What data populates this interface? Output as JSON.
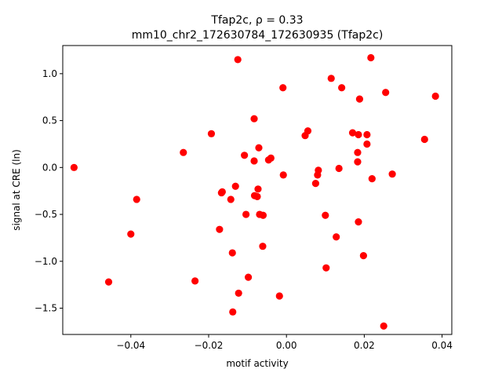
{
  "chart_data": {
    "type": "scatter",
    "title_line1": "Tfap2c, ρ = 0.33",
    "title_line2": "mm10_chr2_172630784_172630935 (Tfap2c)",
    "xlabel": "motif activity",
    "ylabel": "signal at CRE (ln)",
    "xlim": [
      -0.0575,
      0.0425
    ],
    "ylim": [
      -1.78,
      1.3
    ],
    "xticks": [
      -0.04,
      -0.02,
      0.0,
      0.02,
      0.04
    ],
    "xtick_labels": [
      "−0.04",
      "−0.02",
      "0.00",
      "0.02",
      "0.04"
    ],
    "yticks": [
      -1.5,
      -1.0,
      -0.5,
      0.0,
      0.5,
      1.0
    ],
    "ytick_labels": [
      "−1.5",
      "−1.0",
      "−0.5",
      "0.0",
      "0.5",
      "1.0"
    ],
    "grid": false,
    "marker_color": "#ff0000",
    "points": [
      {
        "x": -0.0546,
        "y": 0.0
      },
      {
        "x": -0.0457,
        "y": -1.22
      },
      {
        "x": -0.04,
        "y": -0.71
      },
      {
        "x": -0.0385,
        "y": -0.34
      },
      {
        "x": -0.0265,
        "y": 0.16
      },
      {
        "x": -0.0235,
        "y": -1.21
      },
      {
        "x": -0.0193,
        "y": 0.36
      },
      {
        "x": -0.0172,
        "y": -0.66
      },
      {
        "x": -0.0165,
        "y": -0.26
      },
      {
        "x": -0.0167,
        "y": -0.27
      },
      {
        "x": -0.0143,
        "y": -0.34
      },
      {
        "x": -0.0139,
        "y": -0.91
      },
      {
        "x": -0.0138,
        "y": -1.54
      },
      {
        "x": -0.0131,
        "y": -0.2
      },
      {
        "x": -0.0125,
        "y": 1.15
      },
      {
        "x": -0.0123,
        "y": -1.34
      },
      {
        "x": -0.0108,
        "y": 0.13
      },
      {
        "x": -0.0104,
        "y": -0.5
      },
      {
        "x": -0.0098,
        "y": -1.17
      },
      {
        "x": -0.0083,
        "y": 0.52
      },
      {
        "x": -0.0083,
        "y": 0.07
      },
      {
        "x": -0.0082,
        "y": -0.3
      },
      {
        "x": -0.0075,
        "y": -0.31
      },
      {
        "x": -0.0073,
        "y": -0.23
      },
      {
        "x": -0.0071,
        "y": 0.21
      },
      {
        "x": -0.0069,
        "y": -0.5
      },
      {
        "x": -0.0061,
        "y": -0.84
      },
      {
        "x": -0.006,
        "y": -0.51
      },
      {
        "x": -0.0046,
        "y": 0.08
      },
      {
        "x": -0.004,
        "y": 0.1
      },
      {
        "x": -0.0018,
        "y": -1.37
      },
      {
        "x": -0.0009,
        "y": 0.85
      },
      {
        "x": -0.0008,
        "y": -0.08
      },
      {
        "x": 0.0048,
        "y": 0.34
      },
      {
        "x": 0.0055,
        "y": 0.39
      },
      {
        "x": 0.0075,
        "y": -0.17
      },
      {
        "x": 0.008,
        "y": -0.08
      },
      {
        "x": 0.0082,
        "y": -0.03
      },
      {
        "x": 0.01,
        "y": -0.51
      },
      {
        "x": 0.0102,
        "y": -1.07
      },
      {
        "x": 0.0115,
        "y": 0.95
      },
      {
        "x": 0.0128,
        "y": -0.74
      },
      {
        "x": 0.0135,
        "y": -0.01
      },
      {
        "x": 0.0142,
        "y": 0.85
      },
      {
        "x": 0.017,
        "y": 0.37
      },
      {
        "x": 0.0183,
        "y": 0.16
      },
      {
        "x": 0.0183,
        "y": 0.06
      },
      {
        "x": 0.0185,
        "y": 0.35
      },
      {
        "x": 0.0185,
        "y": -0.58
      },
      {
        "x": 0.0188,
        "y": 0.73
      },
      {
        "x": 0.0198,
        "y": -0.94
      },
      {
        "x": 0.0207,
        "y": 0.35
      },
      {
        "x": 0.0207,
        "y": 0.25
      },
      {
        "x": 0.0217,
        "y": 1.17
      },
      {
        "x": 0.022,
        "y": -0.12
      },
      {
        "x": 0.025,
        "y": -1.69
      },
      {
        "x": 0.0255,
        "y": 0.8
      },
      {
        "x": 0.0272,
        "y": -0.07
      },
      {
        "x": 0.0355,
        "y": 0.3
      },
      {
        "x": 0.0383,
        "y": 0.76
      }
    ]
  }
}
